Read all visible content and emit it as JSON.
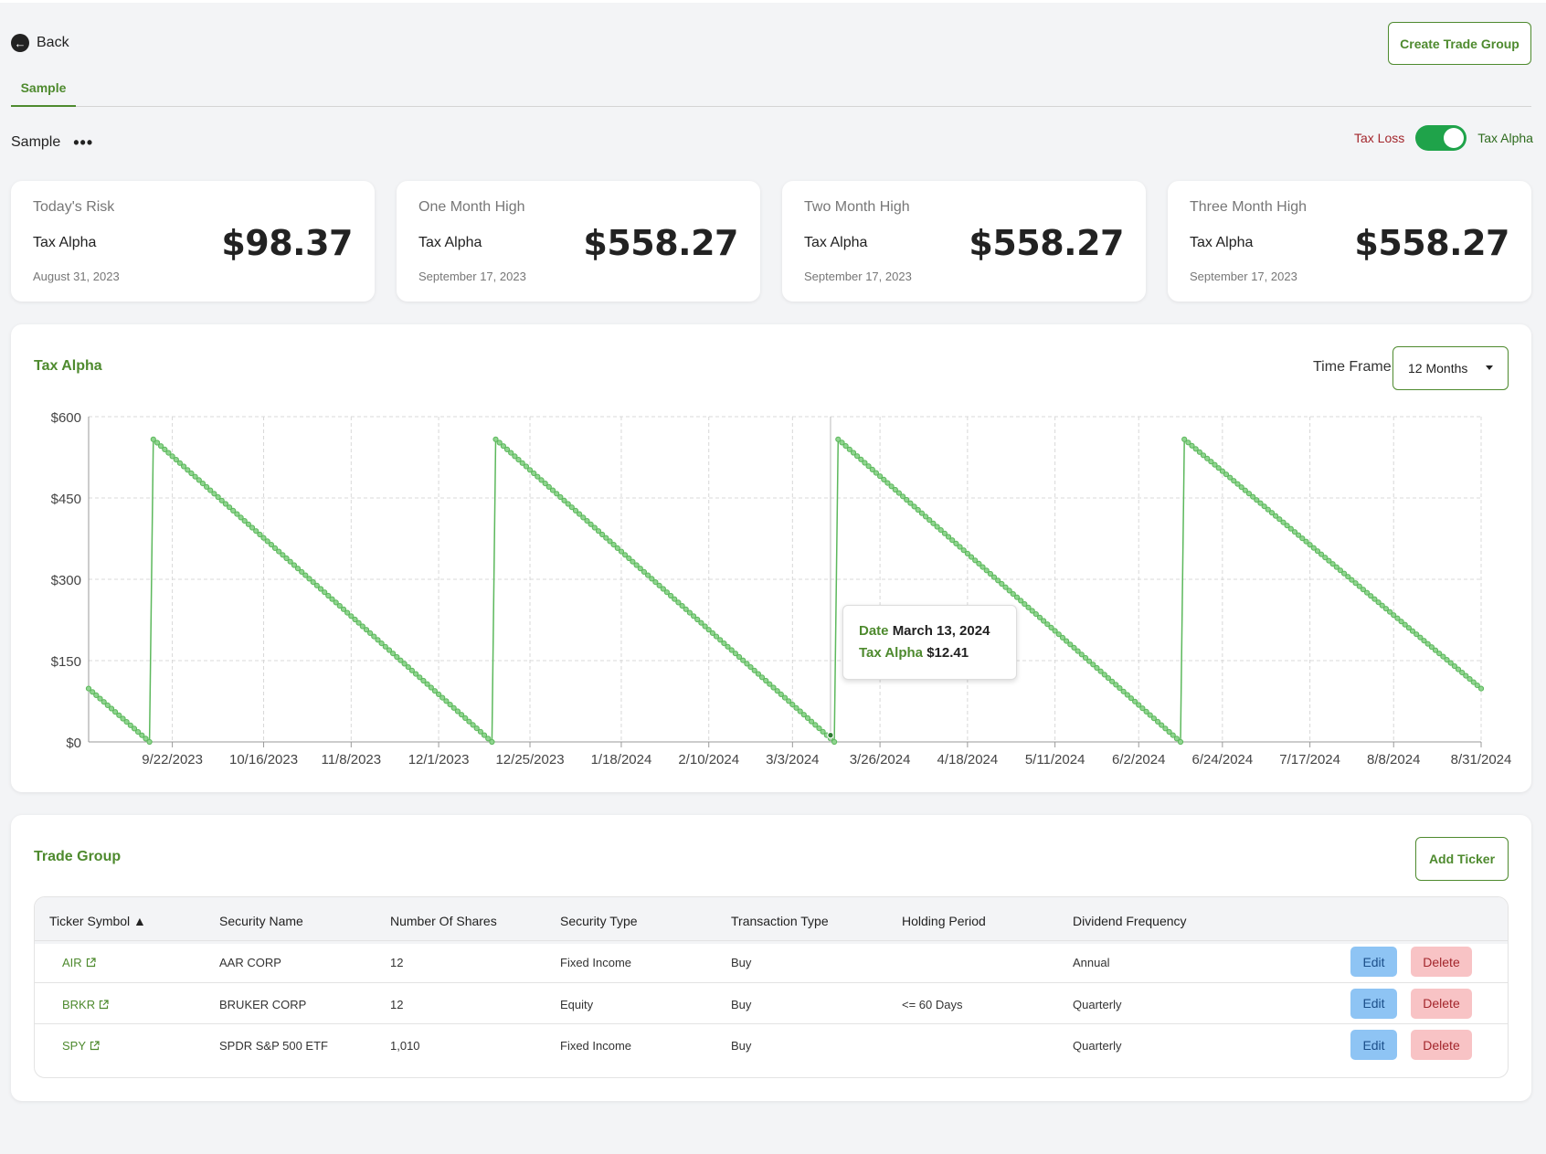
{
  "header": {
    "back_label": "Back",
    "create_button": "Create Trade Group",
    "tabs": [
      {
        "label": "Sample"
      }
    ]
  },
  "group": {
    "name": "Sample",
    "menu_glyph": "•••",
    "toggle": {
      "left_label": "Tax Loss",
      "right_label": "Tax Alpha",
      "on": true
    }
  },
  "cards": [
    {
      "title": "Today's Risk",
      "subtitle": "Tax Alpha",
      "value": "$98.37",
      "date": "August 31, 2023"
    },
    {
      "title": "One Month High",
      "subtitle": "Tax Alpha",
      "value": "$558.27",
      "date": "September 17, 2023"
    },
    {
      "title": "Two Month High",
      "subtitle": "Tax Alpha",
      "value": "$558.27",
      "date": "September 17, 2023"
    },
    {
      "title": "Three Month High",
      "subtitle": "Tax Alpha",
      "value": "$558.27",
      "date": "September 17, 2023"
    }
  ],
  "chart_panel": {
    "title": "Tax Alpha",
    "timeframe_label": "Time Frame",
    "timeframe_value": "12 Months",
    "tooltip": {
      "date_key": "Date",
      "date_value": "March 13, 2024",
      "value_key": "Tax Alpha",
      "value_value": "$12.41"
    }
  },
  "chart_data": {
    "type": "line",
    "title": "",
    "xlabel": "",
    "ylabel": "",
    "x_range": [
      "2023-08-31",
      "2024-08-31"
    ],
    "ylim": [
      0,
      600
    ],
    "y_ticks": [
      0,
      150,
      300,
      450,
      600
    ],
    "y_tick_labels": [
      "$0",
      "$150",
      "$300",
      "$450",
      "$600"
    ],
    "x_ticks": [
      "2023-09-22",
      "2023-10-16",
      "2023-11-08",
      "2023-12-01",
      "2023-12-25",
      "2024-01-18",
      "2024-02-10",
      "2024-03-03",
      "2024-03-26",
      "2024-04-18",
      "2024-05-11",
      "2024-06-02",
      "2024-06-24",
      "2024-07-17",
      "2024-08-08",
      "2024-08-31"
    ],
    "x_tick_labels": [
      "9/22/2023",
      "10/16/2023",
      "11/8/2023",
      "12/1/2023",
      "12/25/2023",
      "1/18/2024",
      "2/10/2024",
      "3/3/2024",
      "3/26/2024",
      "4/18/2024",
      "5/11/2024",
      "6/2/2024",
      "6/24/2024",
      "7/17/2024",
      "8/8/2024",
      "8/31/2024"
    ],
    "grid": true,
    "color": "#5cb85c",
    "series": [
      {
        "segments": [
          {
            "start": "2023-08-31",
            "end": "2023-09-16",
            "start_value": 98.37,
            "end_value": 0
          },
          {
            "start": "2023-09-17",
            "end": "2023-12-15",
            "start_value": 558.27,
            "end_value": 0
          },
          {
            "start": "2023-12-16",
            "end": "2024-03-14",
            "start_value": 558.27,
            "end_value": 0
          },
          {
            "start": "2024-03-15",
            "end": "2024-06-13",
            "start_value": 558.27,
            "end_value": 0
          },
          {
            "start": "2024-06-14",
            "end": "2024-08-31",
            "start_value": 558.27,
            "end_value": 98.37
          }
        ]
      }
    ],
    "highlight": {
      "date": "2024-03-13",
      "value": 12.41
    }
  },
  "trade_group": {
    "title": "Trade Group",
    "add_button": "Add Ticker",
    "columns": [
      "Ticker Symbol ▲",
      "Security Name",
      "Number Of Shares",
      "Security Type",
      "Transaction Type",
      "Holding Period",
      "Dividend Frequency"
    ],
    "edit_label": "Edit",
    "delete_label": "Delete",
    "rows": [
      {
        "ticker": "AIR",
        "name": "AAR CORP",
        "shares": "12",
        "security_type": "Fixed Income",
        "transaction": "Buy",
        "holding": "",
        "dividend": "Annual"
      },
      {
        "ticker": "BRKR",
        "name": "BRUKER CORP",
        "shares": "12",
        "security_type": "Equity",
        "transaction": "Buy",
        "holding": "<= 60 Days",
        "dividend": "Quarterly"
      },
      {
        "ticker": "SPY",
        "name": "SPDR S&P 500 ETF",
        "shares": "1,010",
        "security_type": "Fixed Income",
        "transaction": "Buy",
        "holding": "",
        "dividend": "Quarterly"
      }
    ]
  }
}
